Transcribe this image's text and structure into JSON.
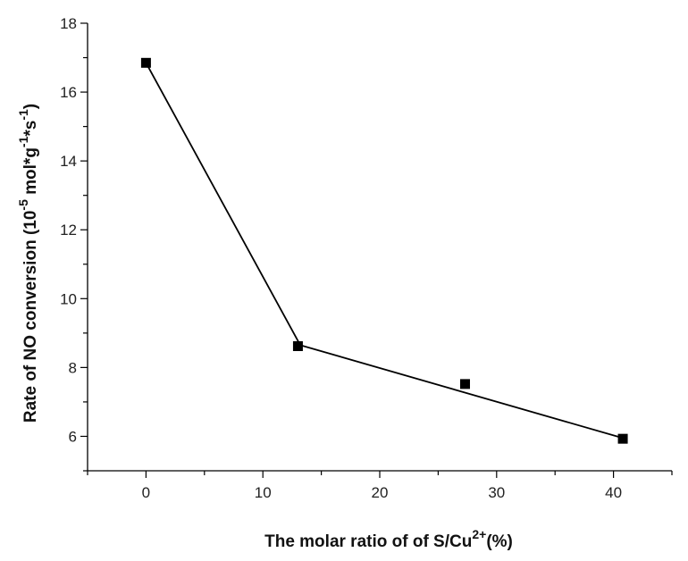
{
  "chart_data": {
    "type": "scatter",
    "xlabel": "The molar ratio of of S/Cu",
    "xlabel_sup": "2+",
    "xlabel_suffix": "(%)",
    "ylabel": "Rate of NO conversion (10",
    "ylabel_parts": [
      {
        "text": "Rate of NO conversion (10",
        "sup": false
      },
      {
        "text": "-5",
        "sup": true
      },
      {
        "text": " mol*g",
        "sup": false
      },
      {
        "text": "-1",
        "sup": true
      },
      {
        "text": "*s",
        "sup": false
      },
      {
        "text": "-1",
        "sup": true
      },
      {
        "text": ")",
        "sup": false
      }
    ],
    "xlim": [
      -5,
      45
    ],
    "ylim": [
      5,
      18
    ],
    "xticks": [
      0,
      10,
      20,
      30,
      40
    ],
    "xtick_labels": [
      "0",
      "10",
      "20",
      "30",
      "40"
    ],
    "yticks": [
      6,
      8,
      10,
      12,
      14,
      16,
      18
    ],
    "ytick_labels": [
      "6",
      "8",
      "10",
      "12",
      "14",
      "16",
      "18"
    ],
    "series": [
      {
        "marker": "square",
        "color": "#000000",
        "x": [
          0,
          13,
          27.3,
          40.8
        ],
        "y": [
          16.85,
          8.62,
          7.52,
          5.93
        ]
      }
    ],
    "fit_line": {
      "color": "#000000",
      "x": [
        0,
        13.2,
        40.8
      ],
      "y": [
        16.85,
        8.65,
        5.95
      ]
    },
    "grid": false
  }
}
